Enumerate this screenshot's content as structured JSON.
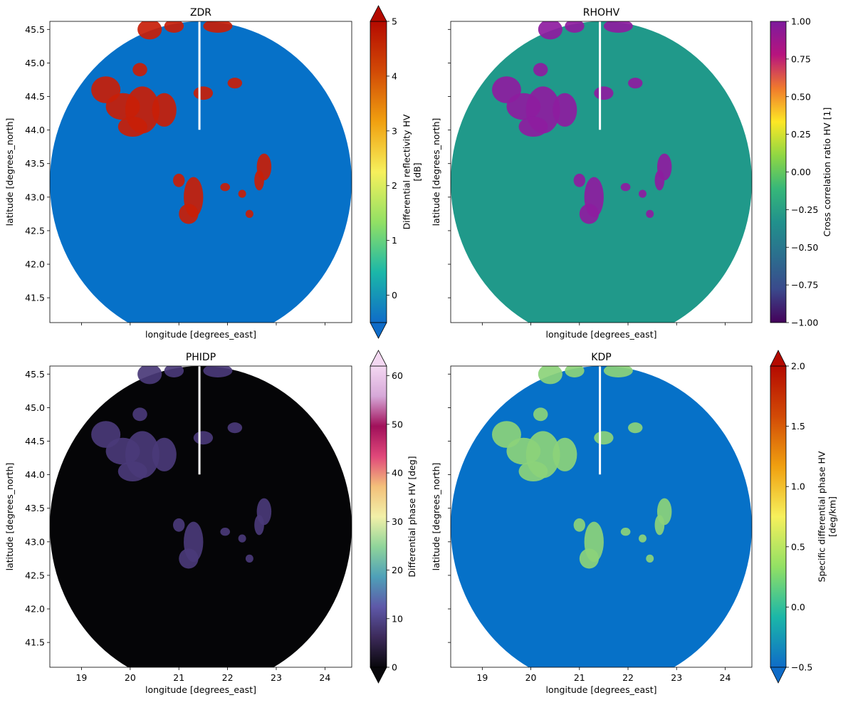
{
  "chart_data": [
    {
      "type": "heatmap",
      "title": "ZDR",
      "xlabel": "longitude [degrees_east]",
      "ylabel": "latitude [degrees_north]",
      "xlim": [
        18.35,
        24.55
      ],
      "ylim": [
        41.13,
        45.62
      ],
      "xticks": [],
      "yticks": [
        41.5,
        42.0,
        42.5,
        43.0,
        43.5,
        44.0,
        44.5,
        45.0,
        45.5
      ],
      "colorbar": {
        "label": "Differential reflectivity HV [dB]",
        "range": [
          -0.5,
          5
        ],
        "ticks": [
          0,
          1,
          2,
          3,
          4,
          5
        ],
        "extend": "both",
        "stops": [
          "#0f6cc8",
          "#1bb7a8",
          "#92e064",
          "#f6f05c",
          "#f0a010",
          "#d24a06",
          "#b40a00"
        ]
      },
      "background_color": "#0671c8",
      "echo_color": "#c81e08"
    },
    {
      "type": "heatmap",
      "title": "RHOHV",
      "xlabel": "longitude [degrees_east]",
      "ylabel": "latitude [degrees_north]",
      "xlim": [
        18.35,
        24.55
      ],
      "ylim": [
        41.13,
        45.62
      ],
      "xticks": [],
      "yticks": [],
      "colorbar": {
        "label": "Cross correlation ratio HV [1]",
        "range": [
          -1,
          1
        ],
        "ticks": [
          -1.0,
          -0.75,
          -0.5,
          -0.25,
          0.0,
          0.25,
          0.5,
          0.75,
          1.0
        ],
        "tick_labels": [
          "−1.00",
          "−0.75",
          "−0.50",
          "−0.25",
          "0.00",
          "0.25",
          "0.50",
          "0.75",
          "1.00"
        ],
        "extend": "neither",
        "stops": [
          "#44015a",
          "#3a4a8c",
          "#2b6f8e",
          "#21918c",
          "#36b779",
          "#90d743",
          "#fde725",
          "#f07a2c",
          "#b7147e",
          "#7d1b9d"
        ]
      },
      "background_color": "#20998a",
      "echo_color": "#8e1ca0"
    },
    {
      "type": "heatmap",
      "title": "PHIDP",
      "xlabel": "longitude [degrees_east]",
      "ylabel": "latitude [degrees_north]",
      "xlim": [
        18.35,
        24.55
      ],
      "ylim": [
        41.13,
        45.62
      ],
      "xticks": [
        19,
        20,
        21,
        22,
        23,
        24
      ],
      "yticks": [
        41.5,
        42.0,
        42.5,
        43.0,
        43.5,
        44.0,
        44.5,
        45.0,
        45.5
      ],
      "colorbar": {
        "label": "Differential phase HV [deg]",
        "range": [
          0,
          62
        ],
        "ticks": [
          0,
          10,
          20,
          30,
          40,
          50,
          60
        ],
        "extend": "both",
        "stops": [
          "#08070b",
          "#3c2a5a",
          "#5e58a8",
          "#4ea0b8",
          "#8fd49a",
          "#f2f0a8",
          "#f3c07a",
          "#e0487a",
          "#a0105a",
          "#d6a8d8",
          "#f4d8f2"
        ]
      },
      "background_color": "#050507",
      "echo_color": "#4a3a78"
    },
    {
      "type": "heatmap",
      "title": "KDP",
      "xlabel": "longitude [degrees_east]",
      "ylabel": "latitude [degrees_north]",
      "xlim": [
        18.35,
        24.55
      ],
      "ylim": [
        41.13,
        45.62
      ],
      "xticks": [
        19,
        20,
        21,
        22,
        23,
        24
      ],
      "yticks": [],
      "colorbar": {
        "label": "Specific differential phase HV [deg/km]",
        "range": [
          -0.5,
          2.0
        ],
        "ticks": [
          -0.5,
          0.0,
          0.5,
          1.0,
          1.5,
          2.0
        ],
        "tick_labels": [
          "−0.5",
          "0.0",
          "0.5",
          "1.0",
          "1.5",
          "2.0"
        ],
        "extend": "both",
        "stops": [
          "#0f6cc8",
          "#1bb7a8",
          "#92e064",
          "#f6f05c",
          "#f0a010",
          "#d24a06",
          "#b40a00"
        ]
      },
      "background_color": "#0671c8",
      "echo_color": "#8cd27a"
    }
  ]
}
